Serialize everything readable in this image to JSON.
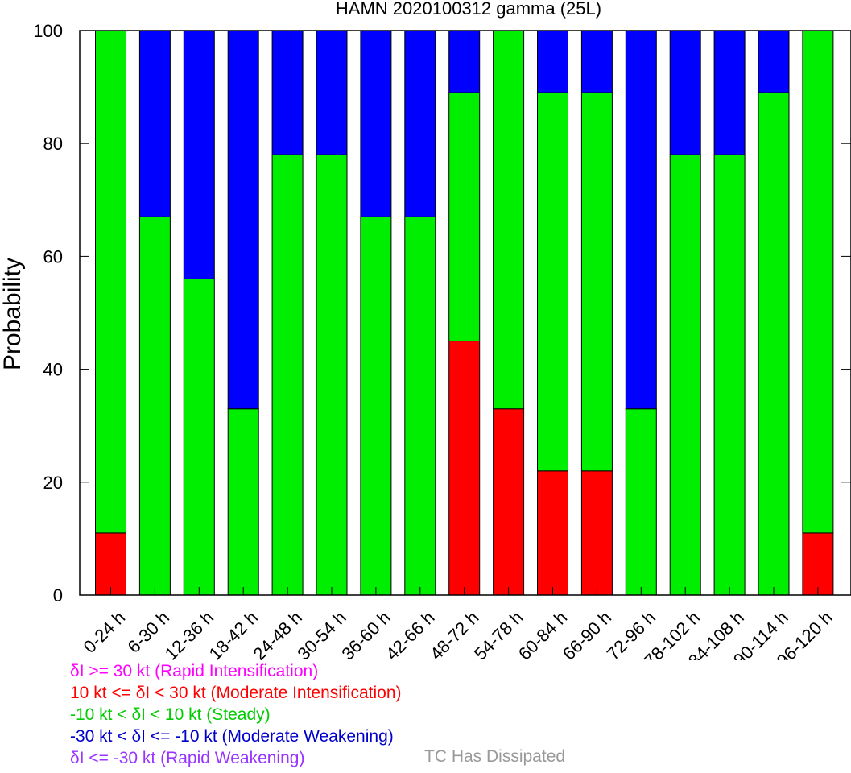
{
  "chart_data": {
    "type": "bar",
    "stacked": true,
    "title": "HAMN 2020100312 gamma (25L)",
    "xlabel": "",
    "ylabel": "Probability",
    "ylim": [
      0,
      100
    ],
    "yticks": [
      0,
      20,
      40,
      60,
      80,
      100
    ],
    "grid": false,
    "categories": [
      "0-24 h",
      "6-30 h",
      "12-36 h",
      "18-42 h",
      "24-48 h",
      "30-54 h",
      "36-60 h",
      "42-66 h",
      "48-72 h",
      "54-78 h",
      "60-84 h",
      "66-90 h",
      "72-96 h",
      "78-102 h",
      "84-108 h",
      "90-114 h",
      "96-120 h"
    ],
    "series": [
      {
        "name": "Rapid Intensification",
        "color": "#ff00ff",
        "values": [
          0,
          0,
          0,
          0,
          0,
          0,
          0,
          0,
          0,
          0,
          0,
          0,
          0,
          0,
          0,
          0,
          0
        ]
      },
      {
        "name": "Moderate Intensification",
        "color": "#ff0000",
        "values": [
          11,
          0,
          0,
          0,
          0,
          0,
          0,
          0,
          45,
          33,
          22,
          22,
          0,
          0,
          0,
          0,
          11
        ]
      },
      {
        "name": "Steady",
        "color": "#00ee00",
        "values": [
          89,
          67,
          56,
          33,
          78,
          78,
          67,
          67,
          44,
          67,
          67,
          67,
          33,
          78,
          78,
          89,
          89
        ]
      },
      {
        "name": "Moderate Weakening",
        "color": "#0000ff",
        "values": [
          0,
          33,
          44,
          67,
          22,
          22,
          33,
          33,
          11,
          0,
          11,
          11,
          67,
          22,
          22,
          11,
          0
        ]
      },
      {
        "name": "Rapid Weakening",
        "color": "#9933ff",
        "values": [
          0,
          0,
          0,
          0,
          0,
          0,
          0,
          0,
          0,
          0,
          0,
          0,
          0,
          0,
          0,
          0,
          0
        ]
      }
    ]
  },
  "legend": {
    "items": [
      {
        "label": "δI >= 30 kt (Rapid Intensification)",
        "color": "#ff00ff"
      },
      {
        "label": "10 kt <= δI < 30 kt (Moderate Intensification)",
        "color": "#ff0000"
      },
      {
        "label": "-10 kt < δI < 10 kt (Steady)",
        "color": "#00cc00"
      },
      {
        "label": "-30 kt < δI <= -10 kt (Moderate Weakening)",
        "color": "#0000cc"
      },
      {
        "label": "δI <= -30 kt (Rapid Weakening)",
        "color": "#9933ff"
      }
    ],
    "dissipated": {
      "label": "TC Has Dissipated",
      "color": "#999999"
    }
  }
}
